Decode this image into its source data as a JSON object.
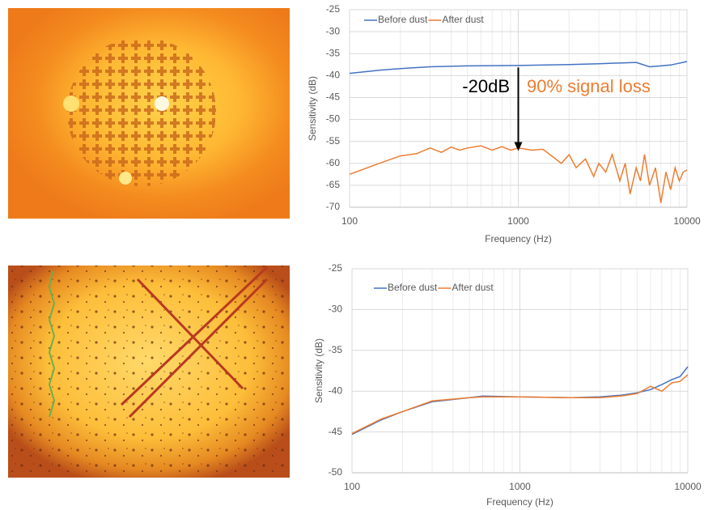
{
  "chart_data": [
    {
      "type": "line",
      "y_label": "Sensitivity (dB)",
      "x_label": "Frequency (Hz)",
      "xscale": "log",
      "xlim": [
        100,
        10000
      ],
      "xticks": [
        100,
        1000,
        10000
      ],
      "ylim": [
        -70,
        -25
      ],
      "yticks": [
        -25,
        -30,
        -35,
        -40,
        -45,
        -50,
        -55,
        -60,
        -65,
        -70
      ],
      "grid": true,
      "legend": "top",
      "annotations": [
        {
          "text": "-20dB",
          "color": "#000000"
        },
        {
          "text": "90% signal loss",
          "color": "#ed7d31"
        }
      ],
      "series": [
        {
          "name": "Before dust",
          "color": "#4472c4",
          "x": [
            100,
            150,
            200,
            300,
            500,
            1000,
            2000,
            3000,
            5000,
            6000,
            7000,
            8000,
            10000
          ],
          "values": [
            -39.5,
            -38.8,
            -38.4,
            -38,
            -37.8,
            -37.7,
            -37.5,
            -37.3,
            -37,
            -38,
            -37.8,
            -37.6,
            -36.8
          ]
        },
        {
          "name": "After dust",
          "color": "#ed7d31",
          "x": [
            100,
            150,
            200,
            250,
            300,
            350,
            400,
            450,
            500,
            600,
            700,
            800,
            900,
            1000,
            1200,
            1400,
            1600,
            1800,
            2000,
            2200,
            2500,
            2800,
            3000,
            3300,
            3600,
            4000,
            4300,
            4600,
            5000,
            5300,
            5600,
            6000,
            6500,
            7000,
            7500,
            8000,
            8500,
            9000,
            9500,
            10000
          ],
          "values": [
            -62.5,
            -60,
            -58.3,
            -57.8,
            -56.5,
            -57.5,
            -56.3,
            -57,
            -56.5,
            -56,
            -57,
            -56.2,
            -57,
            -56.5,
            -57,
            -56.8,
            -58.5,
            -60,
            -58,
            -61,
            -59,
            -63,
            -60,
            -62,
            -58,
            -64,
            -60,
            -67,
            -61,
            -64,
            -58,
            -65,
            -61,
            -69,
            -62,
            -66,
            -61,
            -64,
            -62,
            -61.5
          ]
        }
      ]
    },
    {
      "type": "line",
      "y_label": "Sensitivity (dB)",
      "x_label": "Frequency (Hz)",
      "xscale": "log",
      "xlim": [
        100,
        10000
      ],
      "xticks": [
        100,
        1000,
        10000
      ],
      "ylim": [
        -50,
        -25
      ],
      "yticks": [
        -25,
        -30,
        -35,
        -40,
        -45,
        -50
      ],
      "grid": true,
      "legend": "top",
      "series": [
        {
          "name": "Before dust",
          "color": "#4472c4",
          "x": [
            100,
            150,
            200,
            300,
            500,
            600,
            1000,
            2000,
            3000,
            4000,
            5000,
            6000,
            7000,
            8000,
            9000,
            10000
          ],
          "values": [
            -45.3,
            -43.5,
            -42.5,
            -41.3,
            -40.8,
            -40.6,
            -40.7,
            -40.8,
            -40.7,
            -40.5,
            -40.2,
            -39.8,
            -39.2,
            -38.6,
            -38.2,
            -37
          ]
        },
        {
          "name": "After dust",
          "color": "#ed7d31",
          "x": [
            100,
            150,
            200,
            300,
            500,
            600,
            1000,
            2000,
            3000,
            4000,
            5000,
            6000,
            7000,
            8000,
            9000,
            10000
          ],
          "values": [
            -45.2,
            -43.4,
            -42.5,
            -41.2,
            -40.8,
            -40.7,
            -40.7,
            -40.8,
            -40.8,
            -40.6,
            -40.3,
            -39.4,
            -40,
            -39,
            -38.8,
            -38
          ]
        }
      ]
    }
  ]
}
